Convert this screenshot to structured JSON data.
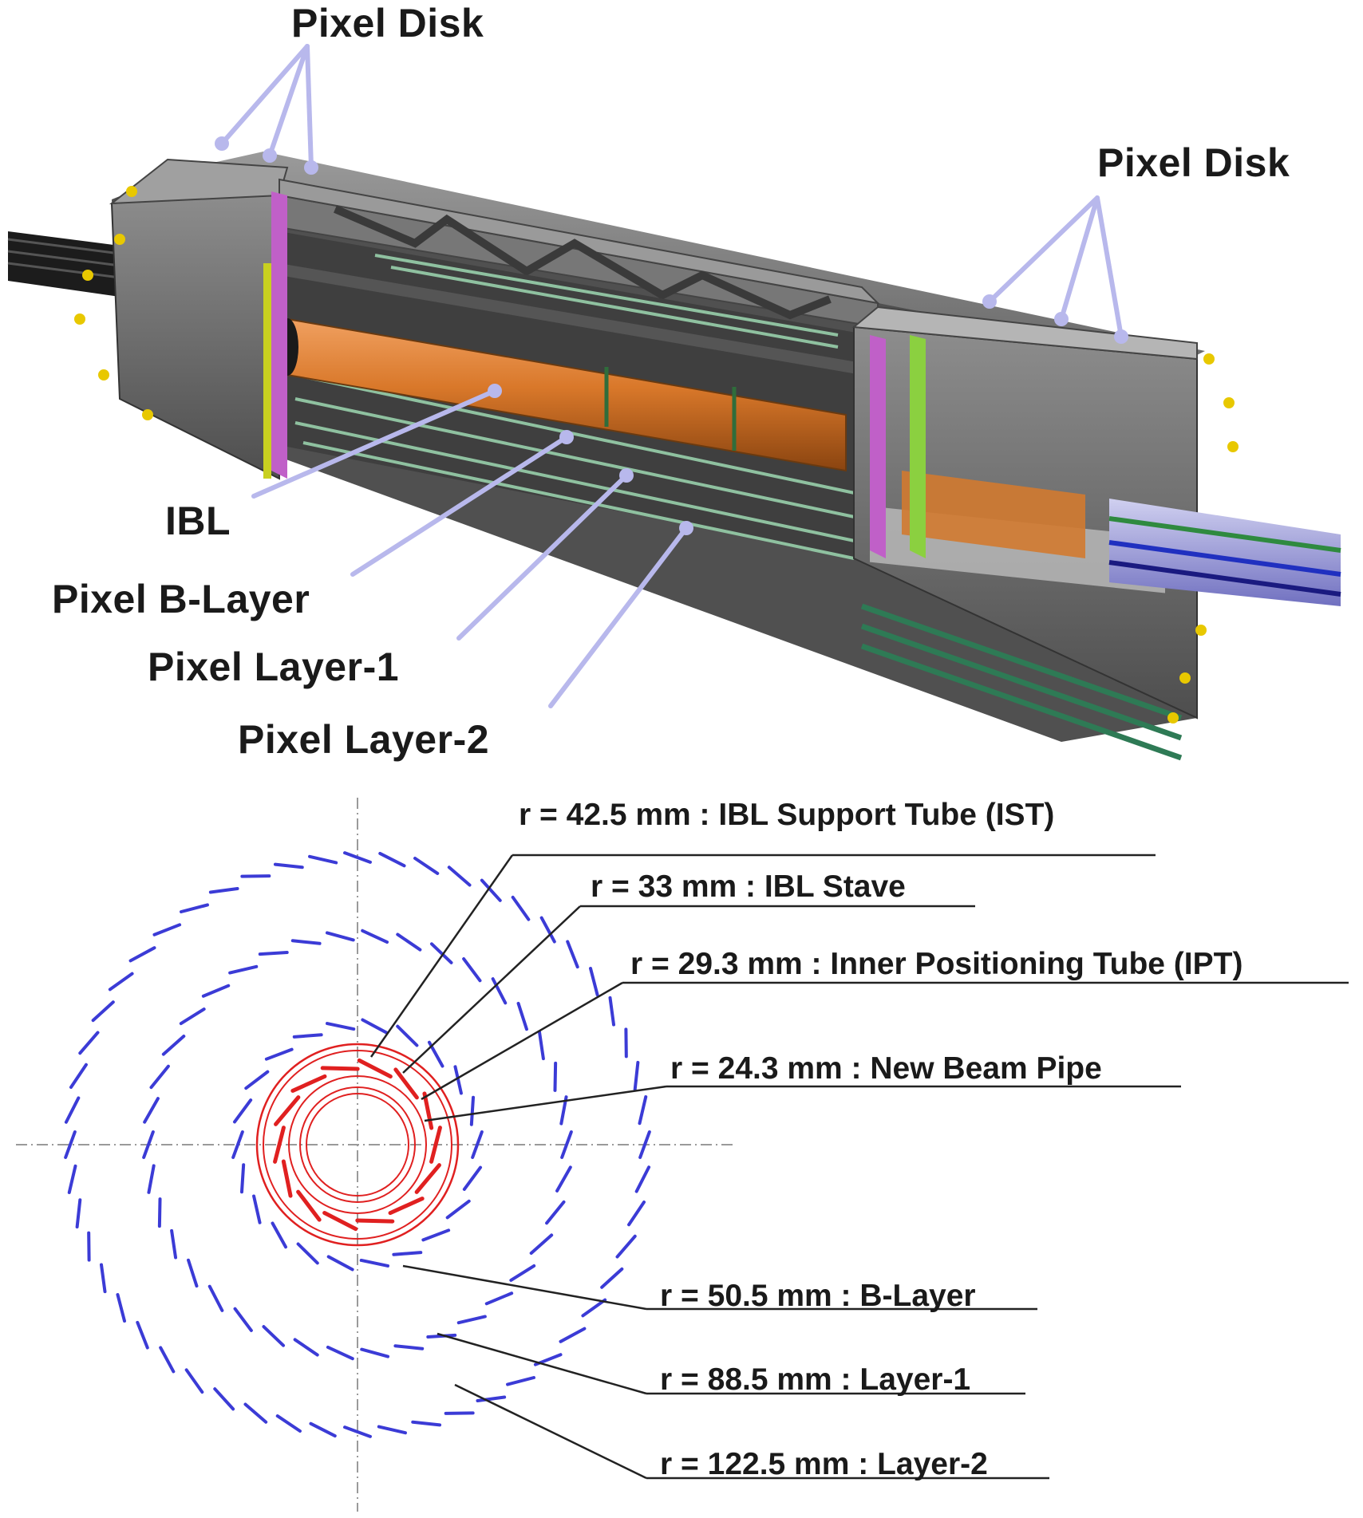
{
  "top_labels": {
    "pixel_disk_left": "Pixel Disk",
    "pixel_disk_right": "Pixel Disk",
    "ibl": "IBL",
    "pixel_b_layer": "Pixel B-Layer",
    "pixel_layer_1": "Pixel Layer-1",
    "pixel_layer_2": "Pixel Layer-2"
  },
  "radii_labels": {
    "ist": "r = 42.5 mm : IBL Support Tube (IST)",
    "ibl_stave": "r = 33 mm : IBL Stave",
    "ipt": "r = 29.3 mm : Inner Positioning Tube (IPT)",
    "beam_pipe": "r = 24.3 mm : New Beam Pipe",
    "b_layer": "r = 50.5 mm : B-Layer",
    "layer_1": "r = 88.5 mm : Layer-1",
    "layer_2": "r = 122.5 mm : Layer-2"
  },
  "colors": {
    "leader_line": "#b8b8ec",
    "detector_frame": "#6f6f6f",
    "ibl_tube": "#d9782a",
    "outer_layer_staves": "#3b3bd6",
    "ibl_elements": "#e02020"
  }
}
